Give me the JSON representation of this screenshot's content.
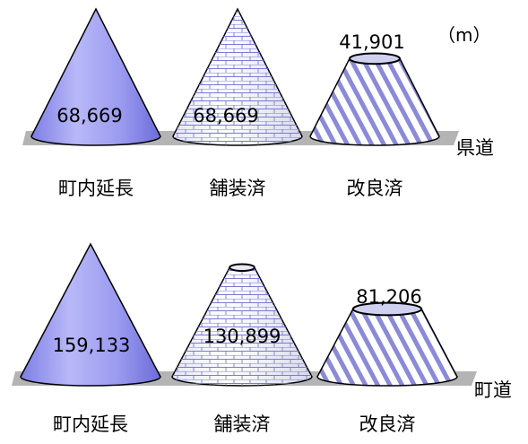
{
  "unit_label": "（m）",
  "colors": {
    "cone_fill": "#9c9cf0",
    "cone_dark": "#5a5ac8",
    "stripe": "#8a8ad8",
    "brick_line": "#7b7bd6",
    "base_bar": "#b4b4b4",
    "outline": "#000000"
  },
  "chart_data": [
    {
      "type": "bar",
      "chart_style": "cone",
      "row_label": "県道",
      "categories": [
        "町内延長",
        "舗装済",
        "改良済"
      ],
      "series": [
        {
          "values": [
            68669,
            68669,
            41901
          ],
          "value_labels": [
            "68,669",
            "68,669",
            "41,901"
          ]
        }
      ],
      "patterns": [
        "solid",
        "brick",
        "stripes"
      ],
      "unit": "（m）"
    },
    {
      "type": "bar",
      "chart_style": "cone",
      "row_label": "町道",
      "categories": [
        "町内延長",
        "舗装済",
        "改良済"
      ],
      "series": [
        {
          "values": [
            159133,
            130899,
            81206
          ],
          "value_labels": [
            "159,133",
            "130,899",
            "81,206"
          ]
        }
      ],
      "patterns": [
        "solid",
        "brick",
        "stripes"
      ],
      "unit": "（m）"
    }
  ]
}
